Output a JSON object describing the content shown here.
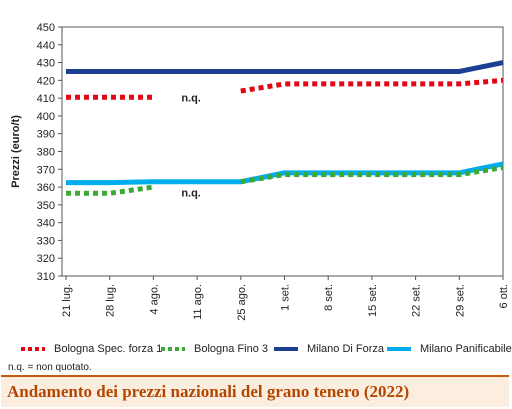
{
  "chart_data": {
    "type": "line",
    "title": "Andamento dei prezzi nazionali del grano tenero (2022)",
    "ylabel": "Prezzi (euro/t)",
    "xlabel": "",
    "ylim": [
      310,
      450
    ],
    "yticks": [
      310,
      320,
      330,
      340,
      350,
      360,
      370,
      380,
      390,
      400,
      410,
      420,
      430,
      440,
      450
    ],
    "categories": [
      "21 lug.",
      "28 lug.",
      "4 ago.",
      "11 ago.",
      "25 ago.",
      "1 set.",
      "8 set.",
      "15 set.",
      "22 set.",
      "29 set.",
      "6 ott."
    ],
    "grid": false,
    "legend_position": "bottom",
    "series": [
      {
        "name": "Bologna Spec. forza 1",
        "color": "#e30613",
        "style": "dotted",
        "values": [
          410.5,
          410.5,
          410.5,
          null,
          414,
          418,
          418,
          418,
          418,
          418,
          420
        ]
      },
      {
        "name": "Bologna Fino 3",
        "color": "#3aa935",
        "style": "dotted",
        "values": [
          356.5,
          356.5,
          360,
          null,
          363,
          367,
          367,
          367,
          367,
          367,
          371
        ]
      },
      {
        "name": "Milano Di Forza",
        "color": "#1c3f94",
        "style": "solid",
        "values": [
          425,
          425,
          425,
          425,
          425,
          425,
          425,
          425,
          425,
          425,
          430
        ]
      },
      {
        "name": "Milano Panificabile",
        "color": "#00aeef",
        "style": "solid",
        "values": [
          362.5,
          362.5,
          363,
          363,
          363,
          368,
          368,
          368,
          368,
          368,
          373
        ]
      }
    ],
    "annotations": [
      "n.q.",
      "n.q."
    ],
    "footnote": "n.q. = non quotato."
  }
}
